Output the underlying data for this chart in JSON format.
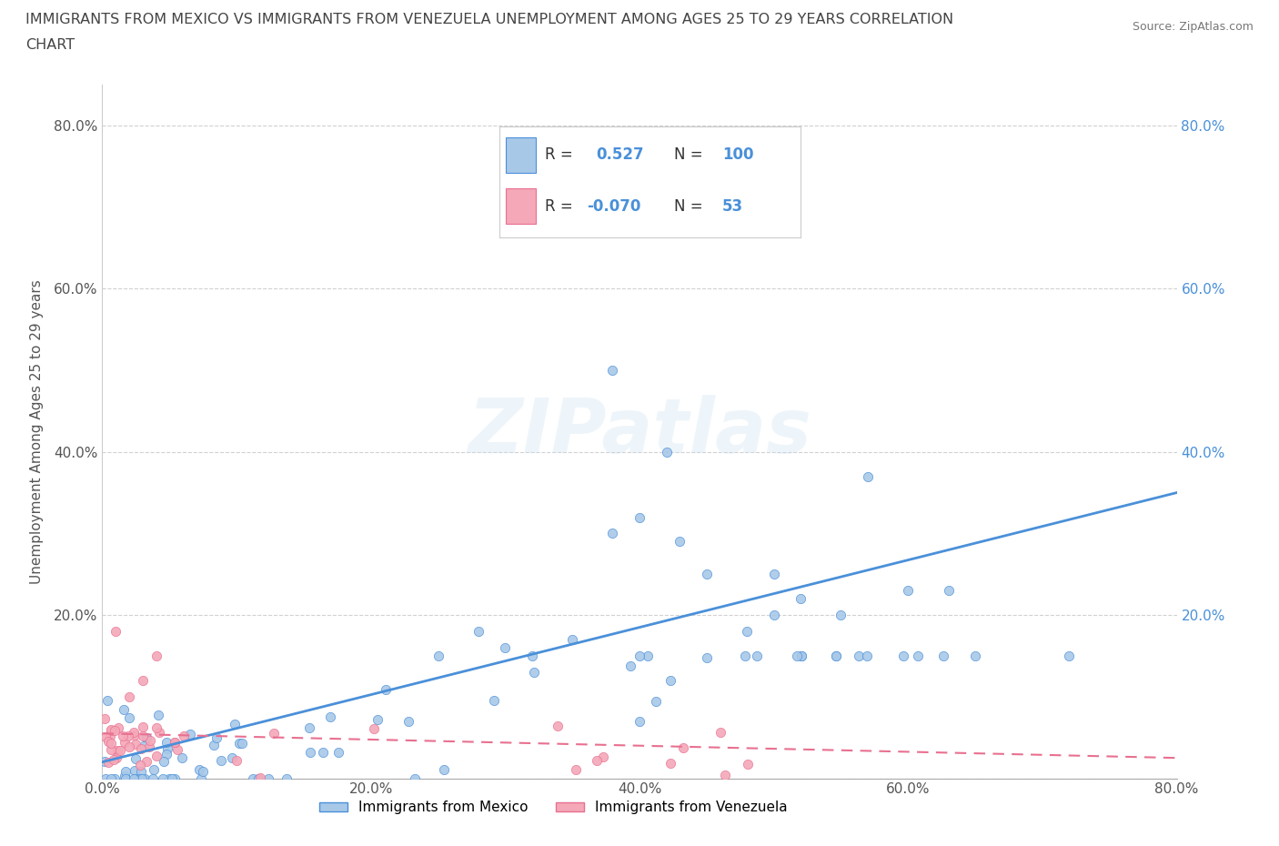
{
  "title_line1": "IMMIGRANTS FROM MEXICO VS IMMIGRANTS FROM VENEZUELA UNEMPLOYMENT AMONG AGES 25 TO 29 YEARS CORRELATION",
  "title_line2": "CHART",
  "source": "Source: ZipAtlas.com",
  "ylabel": "Unemployment Among Ages 25 to 29 years",
  "xlim": [
    0.0,
    0.8
  ],
  "ylim": [
    0.0,
    0.85
  ],
  "xticks": [
    0.0,
    0.2,
    0.4,
    0.6,
    0.8
  ],
  "yticks": [
    0.0,
    0.2,
    0.4,
    0.6,
    0.8
  ],
  "xticklabels": [
    "0.0%",
    "20.0%",
    "40.0%",
    "60.0%",
    "80.0%"
  ],
  "yticklabels": [
    "",
    "20.0%",
    "40.0%",
    "60.0%",
    "80.0%"
  ],
  "mexico_color": "#a8c8e8",
  "venezuela_color": "#f4a8b8",
  "mexico_line_color": "#4a90d9",
  "venezuela_line_color": "#e87090",
  "mexico_R": 0.527,
  "mexico_N": 100,
  "venezuela_R": -0.07,
  "venezuela_N": 53,
  "legend_label_mexico": "Immigrants from Mexico",
  "legend_label_venezuela": "Immigrants from Venezuela"
}
